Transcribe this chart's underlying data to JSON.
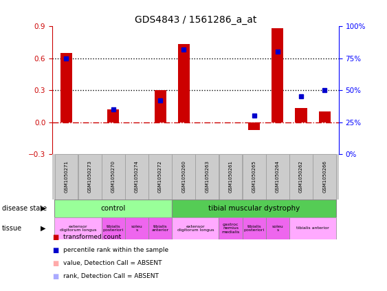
{
  "title": "GDS4843 / 1561286_a_at",
  "samples": [
    "GSM1050271",
    "GSM1050273",
    "GSM1050270",
    "GSM1050274",
    "GSM1050272",
    "GSM1050260",
    "GSM1050263",
    "GSM1050261",
    "GSM1050265",
    "GSM1050264",
    "GSM1050262",
    "GSM1050266"
  ],
  "bar_values": [
    0.65,
    0.0,
    0.12,
    0.0,
    0.3,
    0.73,
    0.0,
    0.0,
    -0.07,
    0.88,
    0.13,
    0.1
  ],
  "dot_values": [
    75,
    null,
    35,
    null,
    42,
    82,
    null,
    null,
    30,
    80,
    45,
    50
  ],
  "bar_color": "#cc0000",
  "dot_color": "#0000cc",
  "bar_absent_color": "#ff9999",
  "dot_absent_color": "#9999ff",
  "ylim_left": [
    -0.3,
    0.9
  ],
  "ylim_right": [
    0,
    100
  ],
  "yticks_left": [
    -0.3,
    0.0,
    0.3,
    0.6,
    0.9
  ],
  "yticks_right": [
    0,
    25,
    50,
    75,
    100
  ],
  "ytick_labels_right": [
    "0%",
    "25%",
    "50%",
    "75%",
    "100%"
  ],
  "hlines": [
    0.3,
    0.6
  ],
  "zero_line_color": "#cc0000",
  "hline_color": "#000000",
  "disease_state_control_label": "control",
  "disease_state_dystrophy_label": "tibial muscular dystrophy",
  "disease_state_control_color": "#99ff99",
  "disease_state_dystrophy_color": "#55cc55",
  "tissue_groups": [
    {
      "label": "extensor\ndigitorum longus",
      "range": [
        0,
        2
      ],
      "color": "#ffaaff"
    },
    {
      "label": "tibialis\nposteriori",
      "range": [
        2,
        3
      ],
      "color": "#ee66ee"
    },
    {
      "label": "soleu\ns",
      "range": [
        3,
        4
      ],
      "color": "#ee66ee"
    },
    {
      "label": "tibialis\nanterior",
      "range": [
        4,
        5
      ],
      "color": "#ee66ee"
    },
    {
      "label": "extensor\ndigitorum longus",
      "range": [
        5,
        7
      ],
      "color": "#ffaaff"
    },
    {
      "label": "gastroc\nnemius\nmedialis",
      "range": [
        7,
        8
      ],
      "color": "#ee66ee"
    },
    {
      "label": "tibialis\nposteriori",
      "range": [
        8,
        9
      ],
      "color": "#ee66ee"
    },
    {
      "label": "soleu\ns",
      "range": [
        9,
        10
      ],
      "color": "#ee66ee"
    },
    {
      "label": "tibialis anterior",
      "range": [
        10,
        12
      ],
      "color": "#ffaaff"
    }
  ],
  "legend_items": [
    {
      "label": "transformed count",
      "color": "#cc0000"
    },
    {
      "label": "percentile rank within the sample",
      "color": "#0000cc"
    },
    {
      "label": "value, Detection Call = ABSENT",
      "color": "#ffaaaa"
    },
    {
      "label": "rank, Detection Call = ABSENT",
      "color": "#aaaaff"
    }
  ],
  "bg_color": "#ffffff",
  "tick_label_area_color": "#cccccc",
  "title_fontsize": 10
}
